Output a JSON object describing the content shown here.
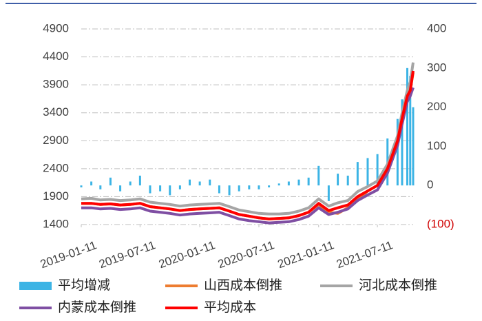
{
  "chart_data": {
    "type": "line",
    "x": [
      "2019-01-11",
      "2019-02-11",
      "2019-03-11",
      "2019-04-11",
      "2019-05-11",
      "2019-06-11",
      "2019-07-11",
      "2019-08-11",
      "2019-09-11",
      "2019-10-11",
      "2019-11-11",
      "2019-12-11",
      "2020-01-11",
      "2020-02-11",
      "2020-03-11",
      "2020-04-11",
      "2020-05-11",
      "2020-06-11",
      "2020-07-11",
      "2020-08-11",
      "2020-09-11",
      "2020-10-11",
      "2020-11-11",
      "2020-12-11",
      "2021-01-11",
      "2021-02-11",
      "2021-03-11",
      "2021-04-11",
      "2021-05-11",
      "2021-06-11",
      "2021-07-11",
      "2021-08-11",
      "2021-09-11",
      "2021-09-25",
      "2021-10-11",
      "2021-10-20",
      "2021-10-29"
    ],
    "xticks": [
      "2019-01-11",
      "2019-07-11",
      "2020-01-11",
      "2020-07-11",
      "2021-01-11",
      "2021-07-11"
    ],
    "ylim": [
      1400,
      4900
    ],
    "yticks": [
      1400,
      1900,
      2400,
      2900,
      3400,
      3900,
      4400,
      4900
    ],
    "y2lim": [
      -100,
      400
    ],
    "y2ticks": [
      {
        "value": -100,
        "label": "(100)"
      },
      0,
      100,
      200,
      300,
      400
    ],
    "negative_tick_color": "#d00000",
    "grid": true,
    "legend": "bottom",
    "series": [
      {
        "name": "平均增减",
        "type": "bar",
        "axis": "y2",
        "color": "#3cb4e5",
        "values": [
          -5,
          10,
          -10,
          20,
          -15,
          10,
          25,
          -20,
          -15,
          -25,
          -10,
          15,
          10,
          15,
          -20,
          -25,
          -15,
          -10,
          -10,
          -5,
          5,
          10,
          15,
          20,
          50,
          -40,
          30,
          25,
          60,
          70,
          80,
          120,
          170,
          220,
          300,
          280,
          200
        ]
      },
      {
        "name": "山西成本倒推",
        "axis": "y",
        "color": "#ed7d31",
        "values": [
          1780,
          1780,
          1760,
          1770,
          1750,
          1760,
          1780,
          1720,
          1700,
          1680,
          1650,
          1670,
          1680,
          1690,
          1700,
          1640,
          1580,
          1550,
          1520,
          1500,
          1510,
          1520,
          1560,
          1620,
          1760,
          1620,
          1600,
          1700,
          1850,
          2000,
          2100,
          2400,
          2900,
          3300,
          3700,
          3800,
          4120
        ]
      },
      {
        "name": "河北成本倒推",
        "axis": "y",
        "color": "#a5a5a5",
        "values": [
          1860,
          1870,
          1840,
          1850,
          1830,
          1840,
          1860,
          1800,
          1780,
          1760,
          1730,
          1750,
          1760,
          1770,
          1780,
          1720,
          1660,
          1630,
          1600,
          1590,
          1590,
          1600,
          1640,
          1700,
          1860,
          1730,
          1790,
          1830,
          1990,
          2080,
          2180,
          2480,
          2990,
          3400,
          3800,
          3950,
          4300
        ]
      },
      {
        "name": "内蒙成本倒推",
        "axis": "y",
        "color": "#7f4fa3",
        "values": [
          1700,
          1700,
          1680,
          1690,
          1670,
          1680,
          1700,
          1640,
          1620,
          1600,
          1570,
          1590,
          1600,
          1610,
          1620,
          1560,
          1500,
          1470,
          1450,
          1430,
          1440,
          1450,
          1490,
          1550,
          1700,
          1580,
          1620,
          1680,
          1830,
          1930,
          2020,
          2320,
          2820,
          3200,
          3600,
          3700,
          3850
        ]
      },
      {
        "name": "平均成本",
        "axis": "y",
        "color": "#ff0000",
        "values": [
          1780,
          1780,
          1760,
          1770,
          1750,
          1760,
          1780,
          1720,
          1700,
          1680,
          1650,
          1670,
          1680,
          1690,
          1700,
          1640,
          1580,
          1550,
          1520,
          1500,
          1510,
          1520,
          1560,
          1620,
          1780,
          1650,
          1700,
          1750,
          1900,
          2000,
          2100,
          2400,
          2900,
          3300,
          3700,
          3800,
          4150
        ]
      }
    ]
  }
}
